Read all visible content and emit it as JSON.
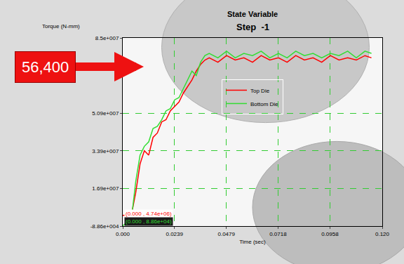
{
  "chart_data": {
    "type": "line",
    "title": "State Variable",
    "subtitle": "Step  -1",
    "x_label": "Time (sec)",
    "y_label": "Torque (N-mm)",
    "x": [
      0,
      0.004,
      0.006,
      0.008,
      0.01,
      0.012,
      0.014,
      0.016,
      0.018,
      0.02,
      0.022,
      0.024,
      0.026,
      0.028,
      0.03,
      0.032,
      0.034,
      0.036,
      0.038,
      0.04,
      0.044,
      0.048,
      0.052,
      0.056,
      0.06,
      0.064,
      0.068,
      0.072,
      0.076,
      0.08,
      0.084,
      0.088,
      0.092,
      0.096,
      0.1,
      0.104,
      0.108,
      0.112,
      0.115
    ],
    "series": [
      {
        "name": "Top Die",
        "color": "#ff0000",
        "values": [
          4740000,
          5000000,
          15000000,
          28000000,
          34000000,
          32000000,
          40000000,
          42000000,
          47000000,
          48000000,
          52000000,
          54000000,
          56000000,
          60000000,
          63000000,
          66000000,
          70000000,
          73000000,
          75000000,
          76000000,
          74000000,
          77000000,
          75000000,
          76000000,
          74000000,
          77000000,
          75000000,
          76000000,
          74000000,
          77000000,
          75000000,
          76000000,
          74000000,
          77000000,
          75000000,
          76000000,
          75000000,
          77000000,
          76000000
        ]
      },
      {
        "name": "Bottom Die",
        "color": "#33dd33",
        "values": [
          88600,
          3000000,
          20000000,
          32000000,
          36000000,
          38000000,
          44000000,
          45000000,
          48000000,
          52000000,
          53000000,
          57000000,
          58000000,
          62000000,
          66000000,
          70000000,
          68000000,
          74000000,
          77000000,
          78000000,
          76000000,
          79000000,
          76000000,
          78000000,
          77000000,
          79000000,
          76000000,
          78000000,
          76000000,
          79000000,
          77000000,
          78000000,
          76000000,
          78000000,
          77000000,
          79000000,
          76000000,
          79000000,
          78000000
        ]
      }
    ],
    "xlim": [
      0,
      0.12
    ],
    "xticks": [
      {
        "value": 0,
        "label": "0.000"
      },
      0.0239,
      0.0479,
      0.0718,
      0.0958,
      {
        "value": 0.12,
        "label": "0.120"
      }
    ],
    "ylim": [
      -88600,
      85000000
    ],
    "yticks": [
      {
        "value": -88600,
        "label": "-8.86e+004"
      },
      {
        "value": 16900000,
        "label": "1.69e+007"
      },
      {
        "value": 33900000,
        "label": "3.39e+007"
      },
      {
        "value": 50900000,
        "label": "5.09e+007"
      },
      {
        "value": 85000000,
        "label": "8.5e+007"
      }
    ],
    "grid": true,
    "legend": "top",
    "annotations": [
      {
        "text": "56,400",
        "color": "#ee1111"
      },
      {
        "text": "(0.000 , 4.74e+06)",
        "color": "#ff0000"
      },
      {
        "text": "(0.000 , 8.86e+04)",
        "color": "#33dd33"
      }
    ]
  }
}
